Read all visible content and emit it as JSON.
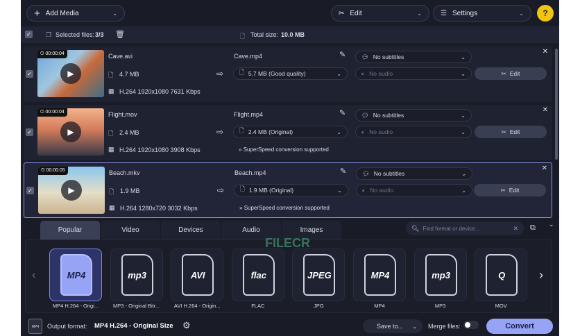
{
  "toolbar": {
    "add_media": "Add Media",
    "edit": "Edit",
    "settings": "Settings",
    "help": "?"
  },
  "selection": {
    "selected_label": "Selected files:",
    "selected_value": "3/3",
    "total_label": "Total size:",
    "total_value": "10.0 MB"
  },
  "files": [
    {
      "duration": "00:00:04",
      "name": "Cave.avi",
      "size": "4.7 MB",
      "codec": "H.264 1920x1080 7631 Kbps",
      "output_name": "Cave.mp4",
      "output_size": "5.7 MB (Good quality)",
      "subtitles": "No subtitles",
      "audio": "No audio",
      "edit": "Edit",
      "note": ""
    },
    {
      "duration": "00:00:04",
      "name": "Flight.mov",
      "size": "2.4 MB",
      "codec": "H.264 1920x1080 3908 Kbps",
      "output_name": "Flight.mp4",
      "output_size": "2.4 MB (Original)",
      "subtitles": "No subtitles",
      "audio": "No audio",
      "edit": "Edit",
      "note": "SuperSpeed conversion supported"
    },
    {
      "duration": "00:00:05",
      "name": "Beach.mkv",
      "size": "1.9 MB",
      "codec": "H.264 1280x720 3032 Kbps",
      "output_name": "Beach.mp4",
      "output_size": "1.9 MB (Original)",
      "subtitles": "No subtitles",
      "audio": "No audio",
      "edit": "Edit",
      "note": "SuperSpeed conversion supported"
    }
  ],
  "tabs": [
    "Popular",
    "Video",
    "Devices",
    "Audio",
    "Images"
  ],
  "search": {
    "placeholder": "Find format or device..."
  },
  "formats": [
    {
      "icon": "MP4",
      "label": "MP4 H.264 - Origi..."
    },
    {
      "icon": "mp3",
      "label": "MP3 - Original Bitr..."
    },
    {
      "icon": "AVI",
      "label": "AVI H.264 - Origin..."
    },
    {
      "icon": "flac",
      "label": "FLAC"
    },
    {
      "icon": "JPEG",
      "label": "JPG"
    },
    {
      "icon": "MP4",
      "label": "MP4"
    },
    {
      "icon": "mp3",
      "label": "MP3"
    },
    {
      "icon": "Q",
      "label": "MOV"
    }
  ],
  "watermark": "FILECR",
  "footer": {
    "output_label": "Output format:",
    "output_value": "MP4 H.264 - Original Size",
    "save_to": "Save to...",
    "merge": "Merge files:",
    "convert": "Convert"
  },
  "colors": {
    "accent": "#97a3f5",
    "bg": "#191b26"
  }
}
